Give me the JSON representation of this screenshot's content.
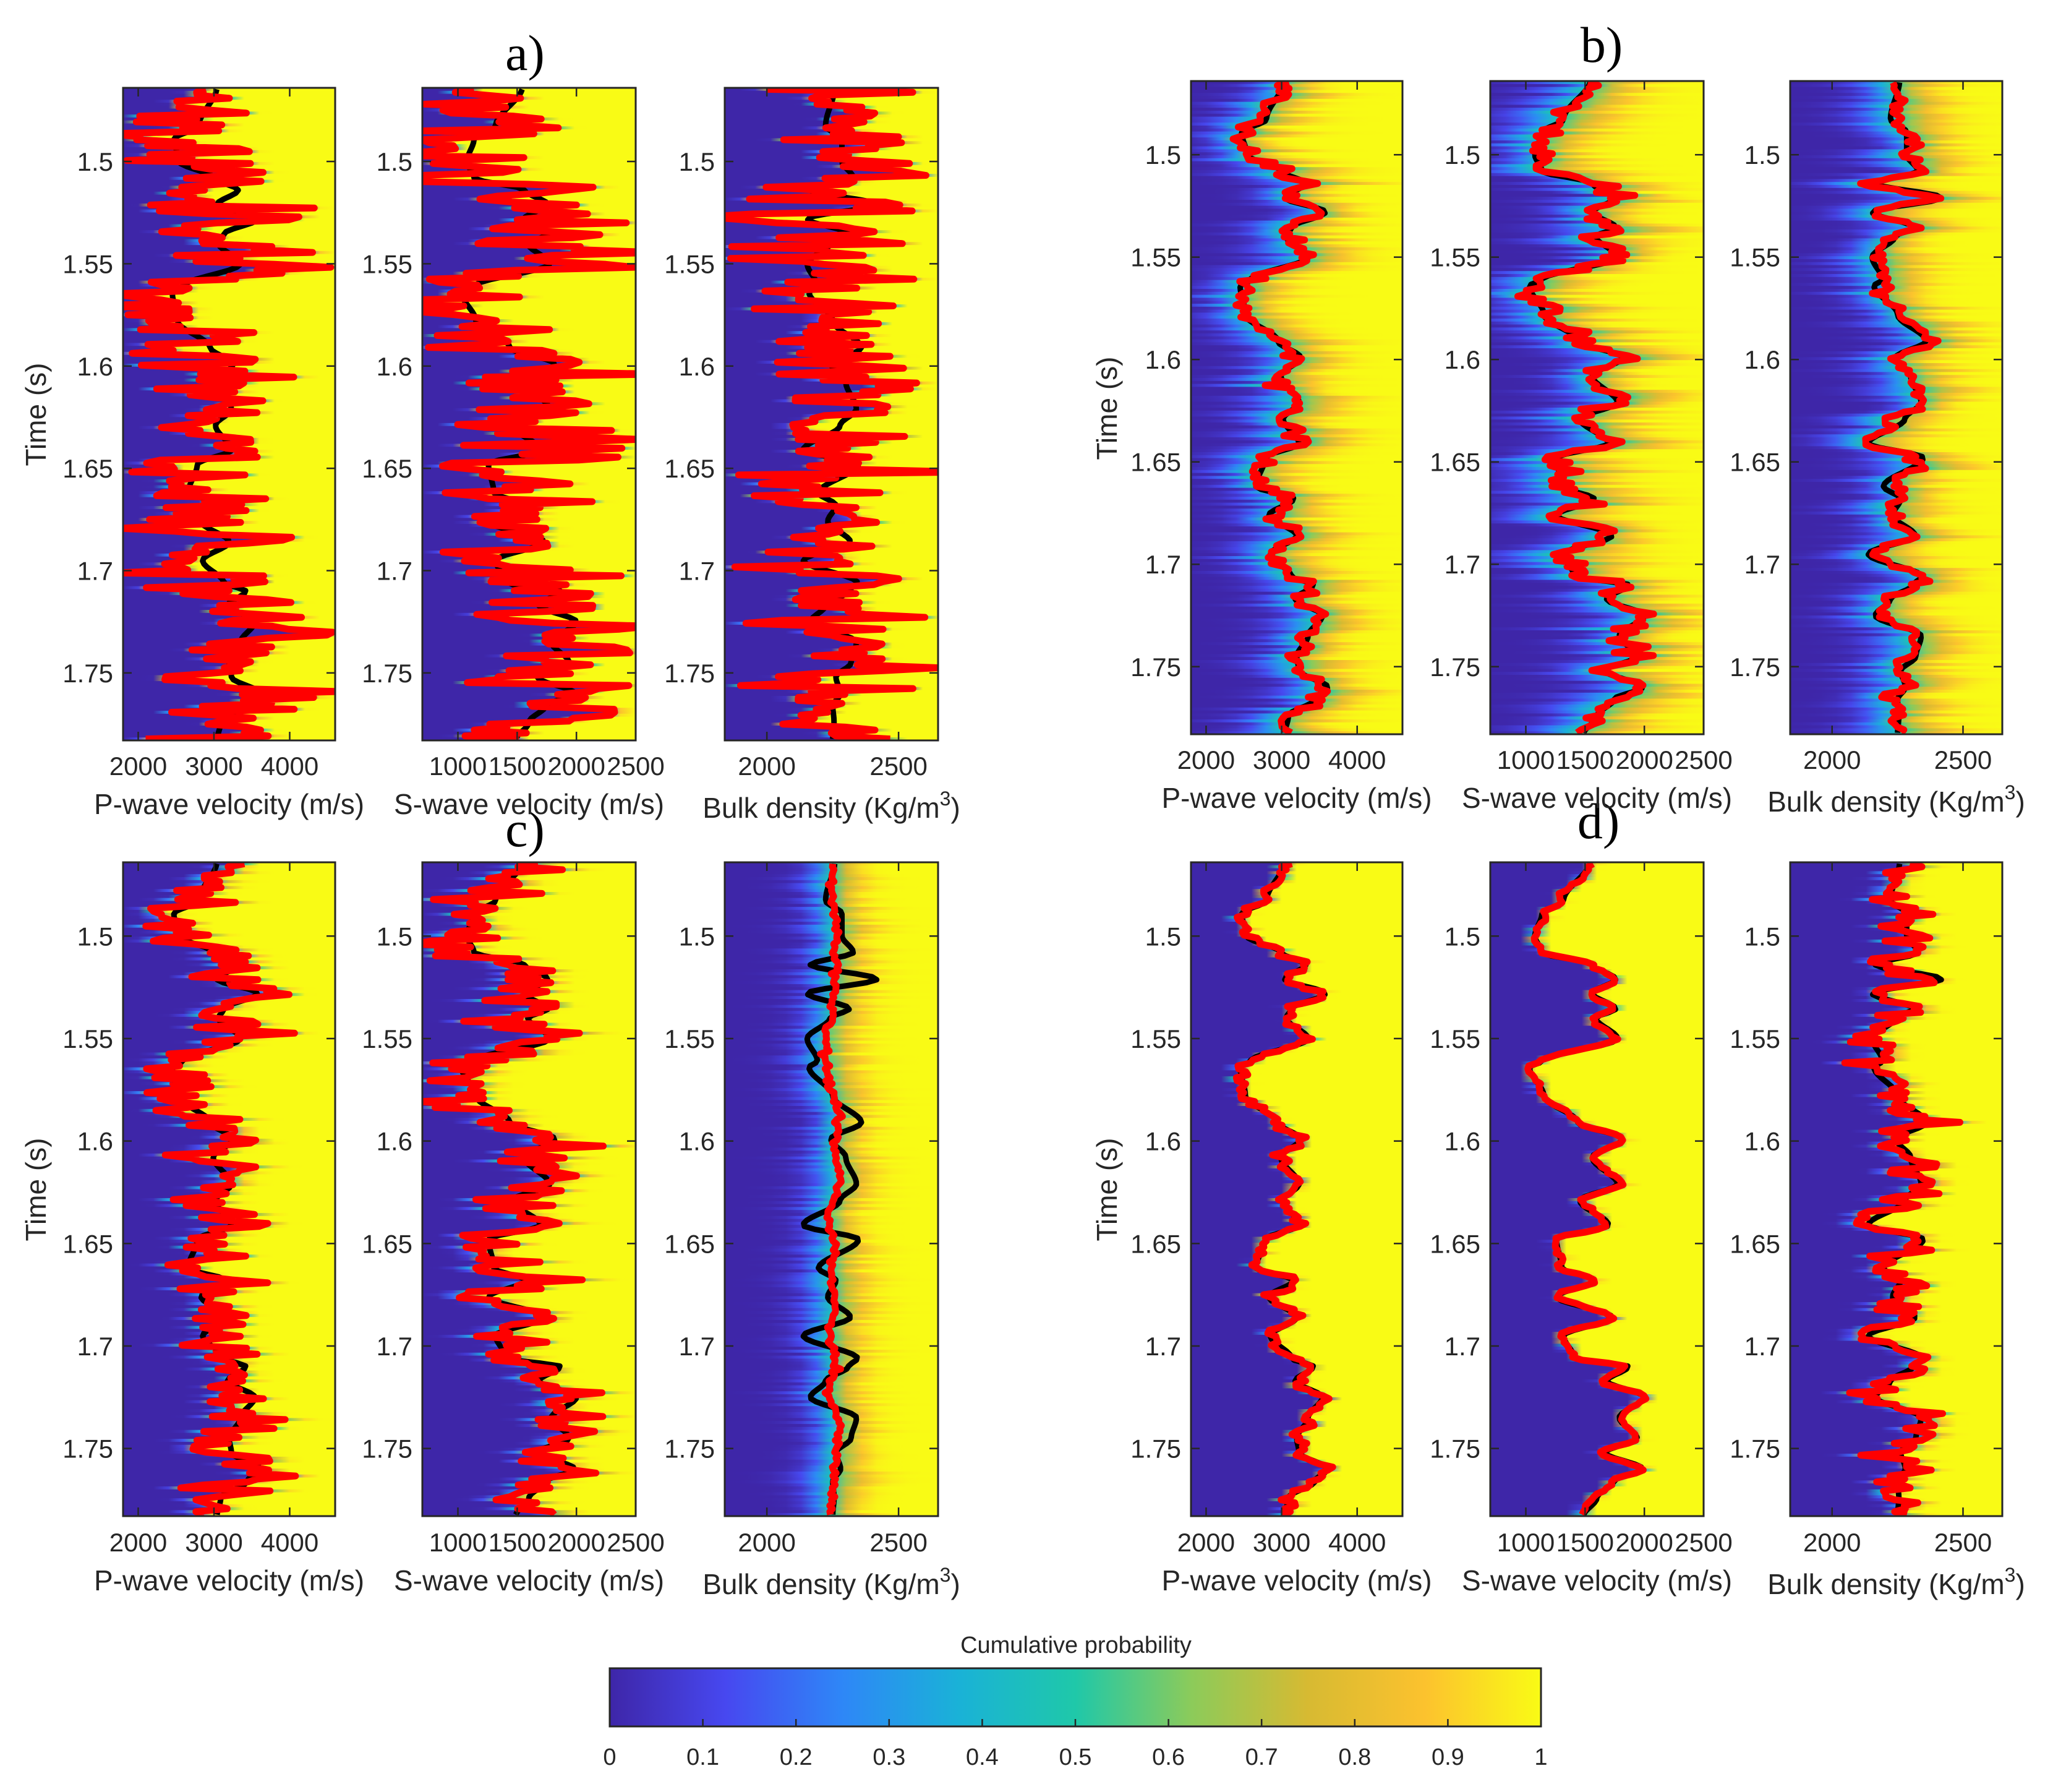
{
  "figure": {
    "colorbar": {
      "title": "Cumulative probability",
      "ticks": [
        0,
        0.1,
        0.2,
        0.3,
        0.4,
        0.5,
        0.6,
        0.7,
        0.8,
        0.9,
        1
      ],
      "tick_labels": [
        "0",
        "0.1",
        "0.2",
        "0.3",
        "0.4",
        "0.5",
        "0.6",
        "0.7",
        "0.8",
        "0.9",
        "1"
      ],
      "colormap": "parula",
      "colormap_stops": [
        "#3e26a8",
        "#4748f0",
        "#2e87f7",
        "#1ab2d7",
        "#1fc8a9",
        "#8ccb5a",
        "#d7ba32",
        "#fcc22e",
        "#f9fb15"
      ],
      "range": [
        0,
        1
      ]
    },
    "colors": {
      "true_log": "#000000",
      "estimate": "#ff0000"
    }
  },
  "chart_data": [
    {
      "type": "heatmap",
      "panel": "a",
      "title": "a)",
      "ylabel": "Time (s)",
      "ylim": [
        1.464,
        1.783
      ],
      "yticks": [
        1.5,
        1.55,
        1.6,
        1.65,
        1.7,
        1.75
      ],
      "ytick_labels": [
        "1.5",
        "1.55",
        "1.6",
        "1.65",
        "1.7",
        "1.75"
      ],
      "y_reversed": true,
      "description": "Cumulative probability of posterior property distributions vs time, with true well log (black) and inverted estimate (red)",
      "tracks": [
        {
          "xlabel": "P-wave velocity (m/s)",
          "xlim": [
            1800,
            4600
          ],
          "xticks": [
            2000,
            3000,
            4000
          ],
          "xtick_labels": [
            "2000",
            "3000",
            "4000"
          ],
          "property": "vp",
          "estimate_noise": 520,
          "spread": 60,
          "seed": 11
        },
        {
          "xlabel": "S-wave velocity (m/s)",
          "xlim": [
            700,
            2500
          ],
          "xticks": [
            1000,
            1500,
            2000,
            2500
          ],
          "xtick_labels": [
            "1000",
            "1500",
            "2000",
            "2500"
          ],
          "property": "vs",
          "estimate_noise": 360,
          "spread": 40,
          "seed": 12
        },
        {
          "xlabel": "Bulk density (Kg/m³)",
          "xlabel_base": "Bulk density (Kg/m",
          "xlabel_sup": "3",
          "xlabel_tail": ")",
          "xlim": [
            1840,
            2650
          ],
          "xticks": [
            2000,
            2500
          ],
          "xtick_labels": [
            "2000",
            "2500"
          ],
          "property": "rho",
          "estimate_noise": 160,
          "spread": 20,
          "seed": 13
        }
      ]
    },
    {
      "type": "heatmap",
      "panel": "b",
      "title": "b)",
      "ylabel": "Time (s)",
      "ylim": [
        1.464,
        1.783
      ],
      "yticks": [
        1.5,
        1.55,
        1.6,
        1.65,
        1.7,
        1.75
      ],
      "ytick_labels": [
        "1.5",
        "1.55",
        "1.6",
        "1.65",
        "1.7",
        "1.75"
      ],
      "y_reversed": true,
      "tracks": [
        {
          "xlabel": "P-wave velocity (m/s)",
          "xlim": [
            1800,
            4600
          ],
          "xticks": [
            2000,
            3000,
            4000
          ],
          "xtick_labels": [
            "2000",
            "3000",
            "4000"
          ],
          "property": "vp",
          "estimate_noise": 90,
          "spread": 380,
          "seed": 21
        },
        {
          "xlabel": "S-wave velocity (m/s)",
          "xlim": [
            700,
            2500
          ],
          "xticks": [
            1000,
            1500,
            2000,
            2500
          ],
          "xtick_labels": [
            "1000",
            "1500",
            "2000",
            "2500"
          ],
          "property": "vs",
          "estimate_noise": 70,
          "spread": 280,
          "seed": 22
        },
        {
          "xlabel": "Bulk density (Kg/m³)",
          "xlabel_base": "Bulk density (Kg/m",
          "xlabel_sup": "3",
          "xlabel_tail": ")",
          "xlim": [
            1840,
            2650
          ],
          "xticks": [
            2000,
            2500
          ],
          "xtick_labels": [
            "2000",
            "2500"
          ],
          "property": "rho",
          "estimate_noise": 45,
          "spread": 110,
          "seed": 23,
          "smooth_estimate": true
        }
      ]
    },
    {
      "type": "heatmap",
      "panel": "c",
      "title": "c)",
      "ylabel": "Time (s)",
      "ylim": [
        1.464,
        1.783
      ],
      "yticks": [
        1.5,
        1.55,
        1.6,
        1.65,
        1.7,
        1.75
      ],
      "ytick_labels": [
        "1.5",
        "1.55",
        "1.6",
        "1.65",
        "1.7",
        "1.75"
      ],
      "y_reversed": true,
      "tracks": [
        {
          "xlabel": "P-wave velocity (m/s)",
          "xlim": [
            1800,
            4600
          ],
          "xticks": [
            2000,
            3000,
            4000
          ],
          "xtick_labels": [
            "2000",
            "3000",
            "4000"
          ],
          "property": "vp",
          "estimate_noise": 260,
          "spread": 120,
          "seed": 31
        },
        {
          "xlabel": "S-wave velocity (m/s)",
          "xlim": [
            700,
            2500
          ],
          "xticks": [
            1000,
            1500,
            2000,
            2500
          ],
          "xtick_labels": [
            "1000",
            "1500",
            "2000",
            "2500"
          ],
          "property": "vs",
          "estimate_noise": 190,
          "spread": 90,
          "seed": 32
        },
        {
          "xlabel": "Bulk density (Kg/m³)",
          "xlabel_base": "Bulk density (Kg/m",
          "xlabel_sup": "3",
          "xlabel_tail": ")",
          "xlim": [
            1840,
            2650
          ],
          "xticks": [
            2000,
            2500
          ],
          "xtick_labels": [
            "2000",
            "2500"
          ],
          "property": "rho",
          "estimate_noise": 6,
          "spread": 80,
          "seed": 33,
          "estimate_flat": true
        }
      ]
    },
    {
      "type": "heatmap",
      "panel": "d",
      "title": "d)",
      "ylabel": "Time (s)",
      "ylim": [
        1.464,
        1.783
      ],
      "yticks": [
        1.5,
        1.55,
        1.6,
        1.65,
        1.7,
        1.75
      ],
      "ytick_labels": [
        "1.5",
        "1.55",
        "1.6",
        "1.65",
        "1.7",
        "1.75"
      ],
      "y_reversed": true,
      "tracks": [
        {
          "xlabel": "P-wave velocity (m/s)",
          "xlim": [
            1800,
            4600
          ],
          "xticks": [
            2000,
            3000,
            4000
          ],
          "xtick_labels": [
            "2000",
            "3000",
            "4000"
          ],
          "property": "vp",
          "estimate_noise": 60,
          "spread": 25,
          "seed": 41
        },
        {
          "xlabel": "S-wave velocity (m/s)",
          "xlim": [
            700,
            2500
          ],
          "xticks": [
            1000,
            1500,
            2000,
            2500
          ],
          "xtick_labels": [
            "1000",
            "1500",
            "2000",
            "2500"
          ],
          "property": "vs",
          "estimate_noise": 45,
          "spread": 18,
          "seed": 42,
          "estimate_smoothing": 0.6
        },
        {
          "xlabel": "Bulk density (Kg/m³)",
          "xlabel_base": "Bulk density (Kg/m",
          "xlabel_sup": "3",
          "xlabel_tail": ")",
          "xlim": [
            1840,
            2650
          ],
          "xticks": [
            2000,
            2500
          ],
          "xtick_labels": [
            "2000",
            "2500"
          ],
          "property": "rho",
          "estimate_noise": 55,
          "spread": 30,
          "seed": 43
        }
      ]
    }
  ],
  "true_logs": {
    "time": [
      1.4634,
      1.4827,
      1.489,
      1.5,
      1.508,
      1.514,
      1.521,
      1.528,
      1.5355,
      1.54,
      1.55,
      1.561,
      1.564,
      1.578,
      1.591,
      1.599,
      1.608,
      1.621,
      1.629,
      1.641,
      1.648,
      1.662,
      1.668,
      1.676,
      1.686,
      1.695,
      1.706,
      1.71,
      1.717,
      1.725,
      1.735,
      1.745,
      1.752,
      1.76,
      1.766,
      1.774,
      1.783
    ],
    "vp": [
      3040,
      2800,
      2470,
      2540,
      2990,
      3320,
      3040,
      3580,
      3130,
      3060,
      3350,
      2590,
      2450,
      2520,
      2950,
      3250,
      2990,
      3230,
      3020,
      3230,
      2780,
      2660,
      3160,
      2830,
      3200,
      2850,
      3130,
      3420,
      3180,
      3540,
      3350,
      3200,
      3230,
      3610,
      3440,
      3090,
      3040
    ],
    "vs": [
      1545,
      1318,
      1136,
      1076,
      1136,
      1560,
      1758,
      1560,
      1758,
      1590,
      1773,
      1136,
      1030,
      1152,
      1439,
      1818,
      1560,
      1773,
      1455,
      1697,
      1258,
      1303,
      1576,
      1258,
      1727,
      1318,
      1409,
      1864,
      1682,
      2000,
      1788,
      1939,
      1667,
      1985,
      1742,
      1600,
      1485
    ],
    "rho": [
      2258,
      2223,
      2285,
      2285,
      2328,
      2165,
      2418,
      2153,
      2313,
      2240,
      2153,
      2192,
      2160,
      2250,
      2359,
      2243,
      2300,
      2340,
      2278,
      2138,
      2348,
      2196,
      2262,
      2231,
      2317,
      2138,
      2344,
      2310,
      2223,
      2165,
      2340,
      2320,
      2262,
      2280,
      2250,
      2255,
      2250
    ]
  }
}
